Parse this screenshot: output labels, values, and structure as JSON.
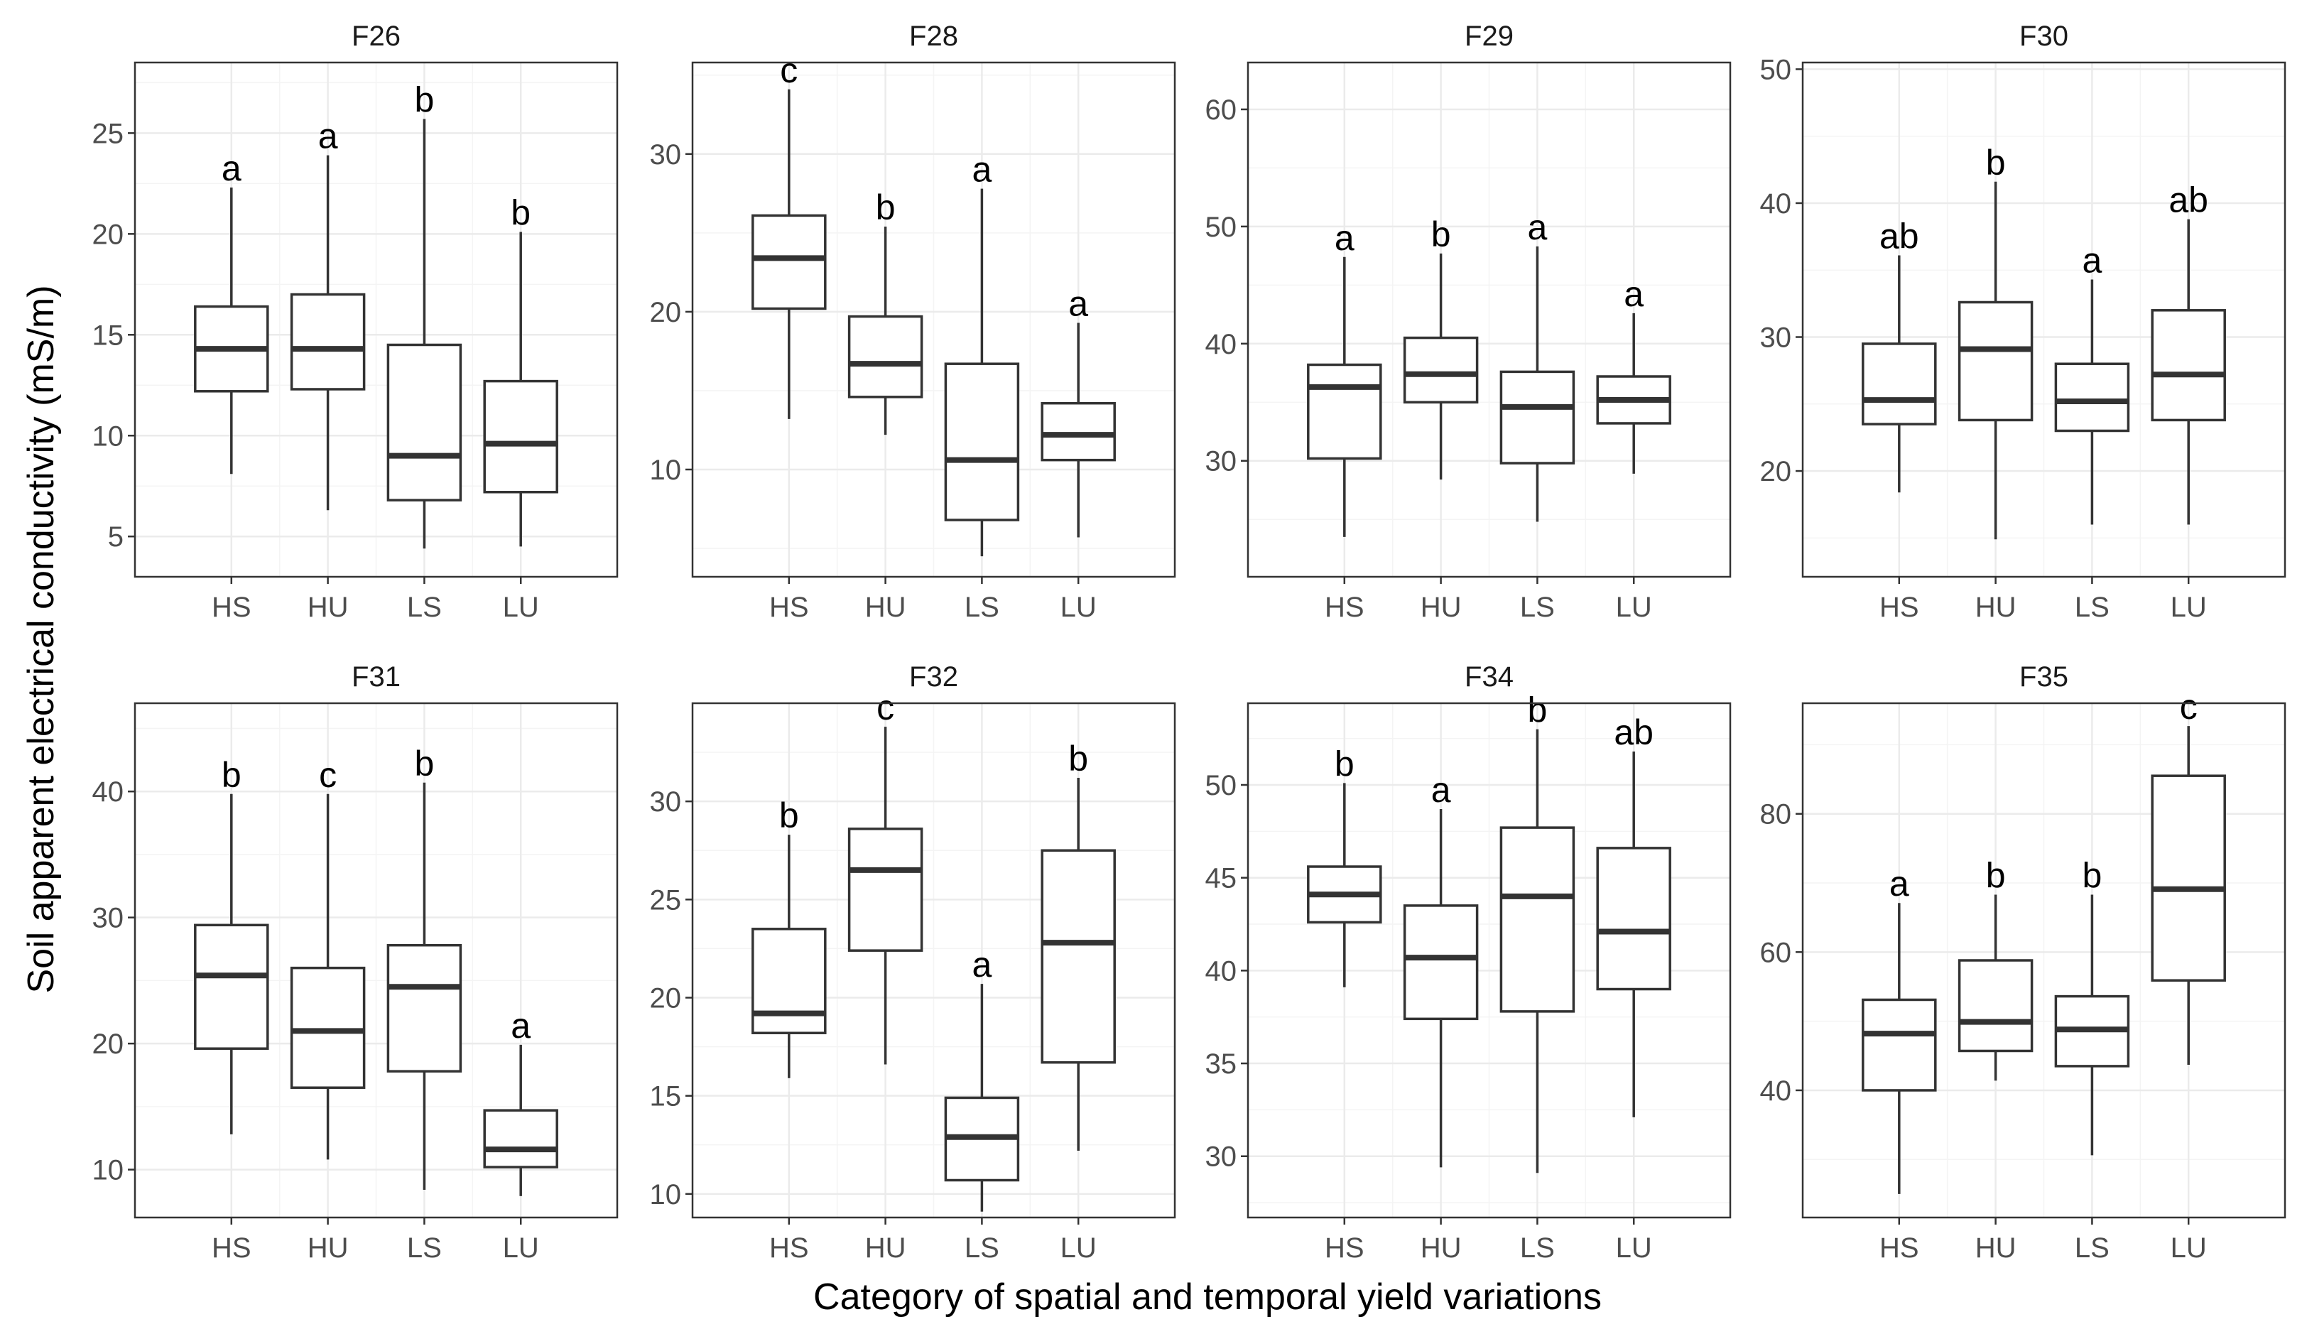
{
  "chart_data": {
    "type": "box",
    "xlabel": "Category of spatial and temporal yield variations",
    "ylabel": "Soil apparent electrical conductivity (mS/m)",
    "categories": [
      "HS",
      "HU",
      "LS",
      "LU"
    ],
    "panels": [
      {
        "title": "F26",
        "ylim": [
          3,
          28.5
        ],
        "yticks": [
          5,
          10,
          15,
          20,
          25
        ],
        "boxes": [
          {
            "category": "HS",
            "min": 8.1,
            "q1": 12.2,
            "median": 14.3,
            "q3": 16.4,
            "max": 22.3,
            "letter": "a"
          },
          {
            "category": "HU",
            "min": 6.3,
            "q1": 12.3,
            "median": 14.3,
            "q3": 17.0,
            "max": 23.9,
            "letter": "a"
          },
          {
            "category": "LS",
            "min": 4.4,
            "q1": 6.8,
            "median": 9.0,
            "q3": 14.5,
            "max": 25.7,
            "letter": "b"
          },
          {
            "category": "LU",
            "min": 4.5,
            "q1": 7.2,
            "median": 9.6,
            "q3": 12.7,
            "max": 20.1,
            "letter": "b"
          }
        ]
      },
      {
        "title": "F28",
        "ylim": [
          3.2,
          35.8
        ],
        "yticks": [
          10,
          20,
          30
        ],
        "boxes": [
          {
            "category": "HS",
            "min": 13.2,
            "q1": 20.2,
            "median": 23.4,
            "q3": 26.1,
            "max": 34.1,
            "letter": "c"
          },
          {
            "category": "HU",
            "min": 12.2,
            "q1": 14.6,
            "median": 16.7,
            "q3": 19.7,
            "max": 25.4,
            "letter": "b"
          },
          {
            "category": "LS",
            "min": 4.5,
            "q1": 6.8,
            "median": 10.6,
            "q3": 16.7,
            "max": 27.8,
            "letter": "a"
          },
          {
            "category": "LU",
            "min": 5.7,
            "q1": 10.6,
            "median": 12.2,
            "q3": 14.2,
            "max": 19.3,
            "letter": "a"
          }
        ]
      },
      {
        "title": "F29",
        "ylim": [
          20.1,
          64.0
        ],
        "yticks": [
          30,
          40,
          50,
          60
        ],
        "boxes": [
          {
            "category": "HS",
            "min": 23.5,
            "q1": 30.2,
            "median": 36.3,
            "q3": 38.2,
            "max": 47.4,
            "letter": "a"
          },
          {
            "category": "HU",
            "min": 28.4,
            "q1": 35.0,
            "median": 37.4,
            "q3": 40.5,
            "max": 47.7,
            "letter": "b"
          },
          {
            "category": "LS",
            "min": 24.8,
            "q1": 29.8,
            "median": 34.6,
            "q3": 37.6,
            "max": 48.3,
            "letter": "a"
          },
          {
            "category": "LU",
            "min": 28.9,
            "q1": 33.2,
            "median": 35.2,
            "q3": 37.2,
            "max": 42.6,
            "letter": "a"
          }
        ]
      },
      {
        "title": "F30",
        "ylim": [
          12.1,
          50.5
        ],
        "yticks": [
          20,
          30,
          40,
          50
        ],
        "boxes": [
          {
            "category": "HS",
            "min": 18.4,
            "q1": 23.5,
            "median": 25.3,
            "q3": 29.5,
            "max": 36.1,
            "letter": "ab"
          },
          {
            "category": "HU",
            "min": 14.9,
            "q1": 23.8,
            "median": 29.1,
            "q3": 32.6,
            "max": 41.6,
            "letter": "b"
          },
          {
            "category": "LS",
            "min": 16.0,
            "q1": 23.0,
            "median": 25.2,
            "q3": 28.0,
            "max": 34.3,
            "letter": "a"
          },
          {
            "category": "LU",
            "min": 16.0,
            "q1": 23.8,
            "median": 27.2,
            "q3": 32.0,
            "max": 38.8,
            "letter": "ab"
          }
        ]
      },
      {
        "title": "F31",
        "ylim": [
          6.2,
          47.0
        ],
        "yticks": [
          10,
          20,
          30,
          40
        ],
        "boxes": [
          {
            "category": "HS",
            "min": 12.8,
            "q1": 19.6,
            "median": 25.4,
            "q3": 29.4,
            "max": 39.8,
            "letter": "b"
          },
          {
            "category": "HU",
            "min": 10.8,
            "q1": 16.5,
            "median": 21.0,
            "q3": 26.0,
            "max": 39.8,
            "letter": "c"
          },
          {
            "category": "LS",
            "min": 8.4,
            "q1": 17.8,
            "median": 24.5,
            "q3": 27.8,
            "max": 40.7,
            "letter": "b"
          },
          {
            "category": "LU",
            "min": 7.9,
            "q1": 10.2,
            "median": 11.6,
            "q3": 14.7,
            "max": 19.9,
            "letter": "a"
          }
        ]
      },
      {
        "title": "F32",
        "ylim": [
          8.8,
          35.0
        ],
        "yticks": [
          10,
          15,
          20,
          25,
          30
        ],
        "boxes": [
          {
            "category": "HS",
            "min": 15.9,
            "q1": 18.2,
            "median": 19.2,
            "q3": 23.5,
            "max": 28.3,
            "letter": "b"
          },
          {
            "category": "HU",
            "min": 16.6,
            "q1": 22.4,
            "median": 26.5,
            "q3": 28.6,
            "max": 33.8,
            "letter": "c"
          },
          {
            "category": "LS",
            "min": 9.1,
            "q1": 10.7,
            "median": 12.9,
            "q3": 14.9,
            "max": 20.7,
            "letter": "a"
          },
          {
            "category": "LU",
            "min": 12.2,
            "q1": 16.7,
            "median": 22.8,
            "q3": 27.5,
            "max": 31.2,
            "letter": "b"
          }
        ]
      },
      {
        "title": "F34",
        "ylim": [
          26.7,
          54.4
        ],
        "yticks": [
          30,
          35,
          40,
          45,
          50
        ],
        "boxes": [
          {
            "category": "HS",
            "min": 39.1,
            "q1": 42.6,
            "median": 44.1,
            "q3": 45.6,
            "max": 50.1,
            "letter": "b"
          },
          {
            "category": "HU",
            "min": 29.4,
            "q1": 37.4,
            "median": 40.7,
            "q3": 43.5,
            "max": 48.7,
            "letter": "a"
          },
          {
            "category": "LS",
            "min": 29.1,
            "q1": 37.8,
            "median": 44.0,
            "q3": 47.7,
            "max": 53.0,
            "letter": "b"
          },
          {
            "category": "LU",
            "min": 32.1,
            "q1": 39.0,
            "median": 42.1,
            "q3": 46.6,
            "max": 51.8,
            "letter": "ab"
          }
        ]
      },
      {
        "title": "F35",
        "ylim": [
          21.6,
          96.0
        ],
        "yticks": [
          40,
          60,
          80
        ],
        "boxes": [
          {
            "category": "HS",
            "min": 25.0,
            "q1": 40.0,
            "median": 48.2,
            "q3": 53.1,
            "max": 67.1,
            "letter": "a"
          },
          {
            "category": "HU",
            "min": 41.4,
            "q1": 45.7,
            "median": 49.9,
            "q3": 58.8,
            "max": 68.3,
            "letter": "b"
          },
          {
            "category": "LS",
            "min": 30.6,
            "q1": 43.5,
            "median": 48.8,
            "q3": 53.6,
            "max": 68.3,
            "letter": "b"
          },
          {
            "category": "LU",
            "min": 43.7,
            "q1": 55.9,
            "median": 69.1,
            "q3": 85.5,
            "max": 92.7,
            "letter": "c"
          }
        ]
      }
    ]
  }
}
